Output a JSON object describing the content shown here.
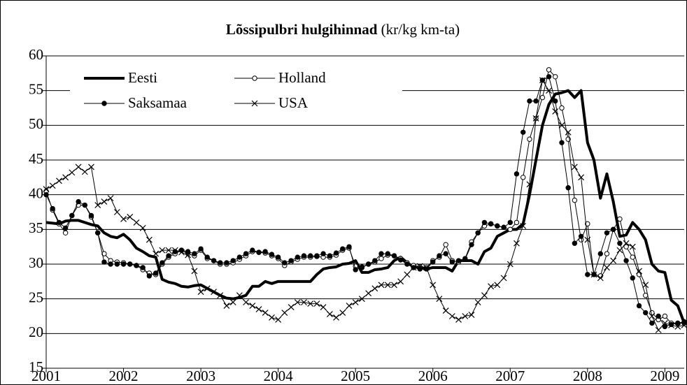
{
  "chart_data": {
    "type": "line",
    "title": "Lõssipulbri hulgihinnad",
    "subtitle": "(kr/kg km-ta)",
    "x": [
      2001,
      2001.083,
      2001.167,
      2001.25,
      2001.333,
      2001.417,
      2001.5,
      2001.583,
      2001.667,
      2001.75,
      2001.833,
      2001.917,
      2002,
      2002.083,
      2002.167,
      2002.25,
      2002.333,
      2002.417,
      2002.5,
      2002.583,
      2002.667,
      2002.75,
      2002.833,
      2002.917,
      2003,
      2003.083,
      2003.167,
      2003.25,
      2003.333,
      2003.417,
      2003.5,
      2003.583,
      2003.667,
      2003.75,
      2003.833,
      2003.917,
      2004,
      2004.083,
      2004.167,
      2004.25,
      2004.333,
      2004.417,
      2004.5,
      2004.583,
      2004.667,
      2004.75,
      2004.833,
      2004.917,
      2005,
      2005.083,
      2005.167,
      2005.25,
      2005.333,
      2005.417,
      2005.5,
      2005.583,
      2005.667,
      2005.75,
      2005.833,
      2005.917,
      2006,
      2006.083,
      2006.167,
      2006.25,
      2006.333,
      2006.417,
      2006.5,
      2006.583,
      2006.667,
      2006.75,
      2006.833,
      2006.917,
      2007,
      2007.083,
      2007.167,
      2007.25,
      2007.333,
      2007.417,
      2007.5,
      2007.583,
      2007.667,
      2007.75,
      2007.833,
      2007.917,
      2008,
      2008.083,
      2008.167,
      2008.25,
      2008.333,
      2008.417,
      2008.5,
      2008.583,
      2008.667,
      2008.75,
      2008.833,
      2008.917,
      2009,
      2009.083,
      2009.167,
      2009.25
    ],
    "series": [
      {
        "name": "Eesti",
        "color": "#000000",
        "line_width": 4,
        "marker": "none",
        "values": [
          36,
          35.9,
          35.8,
          36.2,
          36.3,
          36.3,
          36,
          35.7,
          35.5,
          34.5,
          34,
          33.8,
          34.3,
          33.5,
          32.3,
          31.8,
          31.2,
          31,
          27.8,
          27.4,
          27.2,
          26.8,
          26.7,
          26.9,
          27,
          26.5,
          26,
          25.5,
          25.1,
          25,
          25.2,
          25.5,
          26.8,
          26.8,
          27.5,
          27.2,
          27.5,
          27.5,
          27.5,
          27.5,
          27.5,
          27.5,
          28.5,
          29.3,
          29.5,
          29.6,
          30,
          30.1,
          30.5,
          28.8,
          28.8,
          29.2,
          29.3,
          29.5,
          30.5,
          31,
          30.2,
          29.6,
          29.5,
          29.3,
          29.5,
          29.5,
          29.5,
          29,
          30.5,
          30.5,
          30.5,
          30,
          31.8,
          32.3,
          34,
          34.5,
          35,
          35,
          35.8,
          40,
          45,
          50,
          53,
          54.5,
          54.7,
          55,
          54,
          55,
          47.5,
          45,
          39.5,
          43,
          39,
          34,
          34.2,
          36,
          35,
          33.5,
          30,
          29,
          28.8,
          24.8,
          24,
          21.5
        ]
      },
      {
        "name": "Holland",
        "color": "#000000",
        "line_width": 1,
        "marker": "circle-open",
        "values": [
          40.5,
          37.8,
          35.8,
          34.5,
          37,
          38.5,
          38.5,
          36.8,
          34.5,
          31.5,
          30.5,
          30.3,
          30.2,
          30,
          29.8,
          29.2,
          28.7,
          28.5,
          30,
          31,
          31.5,
          32,
          31.5,
          31.2,
          32,
          30.8,
          30.5,
          30,
          30,
          30.2,
          30.7,
          31.2,
          31.8,
          31.7,
          31.6,
          31.2,
          30.8,
          29.8,
          30.3,
          30.7,
          31,
          31,
          31.1,
          31,
          31,
          31.3,
          32,
          32.3,
          29.7,
          29.5,
          30,
          30.3,
          30.8,
          31.3,
          31.2,
          30.8,
          30.2,
          29.8,
          29.6,
          29.5,
          30.5,
          31,
          32.8,
          30.5,
          30.3,
          30.8,
          33.2,
          34.5,
          35.5,
          35.8,
          35.5,
          35.3,
          35,
          36,
          42.5,
          48,
          51,
          54,
          58,
          57,
          52.5,
          48,
          39.2,
          33.5,
          35.8,
          28.5,
          28.3,
          31.5,
          35,
          36.5,
          32.5,
          31,
          28.5,
          25.5,
          23,
          22,
          22.5,
          21.5,
          21.5,
          21.5
        ]
      },
      {
        "name": "Saksamaa",
        "color": "#000000",
        "line_width": 1,
        "marker": "circle",
        "values": [
          40,
          38,
          36,
          35.2,
          37,
          39,
          38.5,
          37,
          34.5,
          30.3,
          30,
          30,
          30,
          30,
          29.8,
          29.5,
          28.3,
          28.7,
          30.2,
          31.2,
          31.8,
          32,
          31.8,
          31.5,
          32.2,
          31,
          30.5,
          30.2,
          30.2,
          30.5,
          31,
          31.5,
          32,
          31.7,
          31.8,
          31.4,
          31,
          30.2,
          30.5,
          31,
          31.2,
          31.2,
          31.2,
          31.5,
          31.2,
          31.6,
          32.2,
          32.5,
          29.2,
          29.6,
          30,
          30.5,
          31.5,
          31.5,
          31.2,
          30.6,
          30,
          29.5,
          29.3,
          29.3,
          30.3,
          31.2,
          31.5,
          30.3,
          30.5,
          30.7,
          32.8,
          34.5,
          36,
          35.8,
          35.5,
          35.3,
          36,
          43,
          49,
          53.5,
          53.5,
          56.5,
          57,
          53.5,
          47.5,
          41,
          33,
          34,
          28.5,
          28.5,
          31.5,
          34.5,
          35,
          33,
          30.5,
          28,
          24,
          23,
          21.5,
          22.5,
          21,
          21.3,
          21.5,
          21.7
        ]
      },
      {
        "name": "USA",
        "color": "#000000",
        "line_width": 1,
        "marker": "x",
        "values": [
          40.8,
          41.3,
          42,
          42.5,
          43.2,
          44,
          43.3,
          44,
          38.5,
          39,
          39.5,
          37.5,
          36.5,
          36.8,
          36,
          35.2,
          33.5,
          31.5,
          32,
          32,
          32,
          31.7,
          31.3,
          29,
          26,
          26.5,
          26,
          25.5,
          24,
          24.5,
          25.5,
          24.5,
          24,
          23.5,
          23,
          22.3,
          22,
          23,
          23.8,
          24.5,
          24.5,
          24.3,
          24.3,
          23.8,
          22.8,
          22.3,
          23,
          24,
          24.5,
          25,
          25.8,
          26.5,
          27,
          27,
          27,
          27.5,
          28.5,
          29.5,
          29.7,
          29.5,
          27,
          25,
          23.3,
          22.5,
          22,
          22.5,
          22.7,
          24.5,
          25.5,
          26.8,
          27,
          28,
          30,
          33,
          35.5,
          41.5,
          51,
          56.5,
          55,
          52,
          50,
          49,
          44,
          42.5,
          33.5,
          28.5,
          28,
          29.5,
          30.5,
          32,
          33,
          32.5,
          29,
          27,
          22.5,
          20.5,
          21.5,
          21.2,
          21,
          21.2
        ]
      }
    ],
    "xlim": [
      2001,
      2009.25
    ],
    "xticks": [
      2001,
      2002,
      2003,
      2004,
      2005,
      2006,
      2007,
      2008,
      2009
    ],
    "ylim": [
      15,
      60
    ],
    "yticks": [
      15,
      20,
      25,
      30,
      35,
      40,
      45,
      50,
      55,
      60
    ],
    "grid": true,
    "legend": "upper left"
  }
}
